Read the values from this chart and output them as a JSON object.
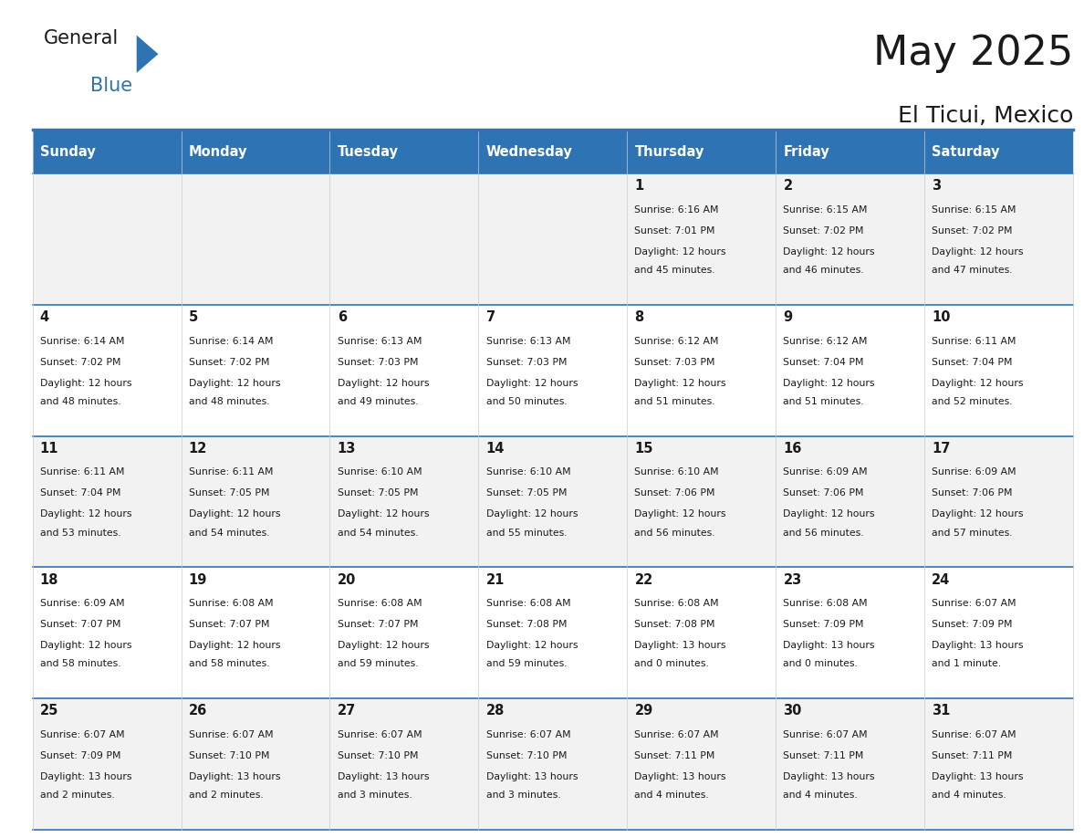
{
  "title": "May 2025",
  "subtitle": "El Ticui, Mexico",
  "days_of_week": [
    "Sunday",
    "Monday",
    "Tuesday",
    "Wednesday",
    "Thursday",
    "Friday",
    "Saturday"
  ],
  "header_bg": "#2E74B5",
  "header_text": "#FFFFFF",
  "cell_bg_light": "#F2F2F2",
  "cell_bg_white": "#FFFFFF",
  "grid_color": "#2E74B5",
  "text_color": "#1a1a1a",
  "calendar_data": [
    [
      {
        "day": "",
        "sunrise": "",
        "sunset": "",
        "daylight": ""
      },
      {
        "day": "",
        "sunrise": "",
        "sunset": "",
        "daylight": ""
      },
      {
        "day": "",
        "sunrise": "",
        "sunset": "",
        "daylight": ""
      },
      {
        "day": "",
        "sunrise": "",
        "sunset": "",
        "daylight": ""
      },
      {
        "day": "1",
        "sunrise": "6:16 AM",
        "sunset": "7:01 PM",
        "daylight": "12 hours and 45 minutes."
      },
      {
        "day": "2",
        "sunrise": "6:15 AM",
        "sunset": "7:02 PM",
        "daylight": "12 hours and 46 minutes."
      },
      {
        "day": "3",
        "sunrise": "6:15 AM",
        "sunset": "7:02 PM",
        "daylight": "12 hours and 47 minutes."
      }
    ],
    [
      {
        "day": "4",
        "sunrise": "6:14 AM",
        "sunset": "7:02 PM",
        "daylight": "12 hours and 48 minutes."
      },
      {
        "day": "5",
        "sunrise": "6:14 AM",
        "sunset": "7:02 PM",
        "daylight": "12 hours and 48 minutes."
      },
      {
        "day": "6",
        "sunrise": "6:13 AM",
        "sunset": "7:03 PM",
        "daylight": "12 hours and 49 minutes."
      },
      {
        "day": "7",
        "sunrise": "6:13 AM",
        "sunset": "7:03 PM",
        "daylight": "12 hours and 50 minutes."
      },
      {
        "day": "8",
        "sunrise": "6:12 AM",
        "sunset": "7:03 PM",
        "daylight": "12 hours and 51 minutes."
      },
      {
        "day": "9",
        "sunrise": "6:12 AM",
        "sunset": "7:04 PM",
        "daylight": "12 hours and 51 minutes."
      },
      {
        "day": "10",
        "sunrise": "6:11 AM",
        "sunset": "7:04 PM",
        "daylight": "12 hours and 52 minutes."
      }
    ],
    [
      {
        "day": "11",
        "sunrise": "6:11 AM",
        "sunset": "7:04 PM",
        "daylight": "12 hours and 53 minutes."
      },
      {
        "day": "12",
        "sunrise": "6:11 AM",
        "sunset": "7:05 PM",
        "daylight": "12 hours and 54 minutes."
      },
      {
        "day": "13",
        "sunrise": "6:10 AM",
        "sunset": "7:05 PM",
        "daylight": "12 hours and 54 minutes."
      },
      {
        "day": "14",
        "sunrise": "6:10 AM",
        "sunset": "7:05 PM",
        "daylight": "12 hours and 55 minutes."
      },
      {
        "day": "15",
        "sunrise": "6:10 AM",
        "sunset": "7:06 PM",
        "daylight": "12 hours and 56 minutes."
      },
      {
        "day": "16",
        "sunrise": "6:09 AM",
        "sunset": "7:06 PM",
        "daylight": "12 hours and 56 minutes."
      },
      {
        "day": "17",
        "sunrise": "6:09 AM",
        "sunset": "7:06 PM",
        "daylight": "12 hours and 57 minutes."
      }
    ],
    [
      {
        "day": "18",
        "sunrise": "6:09 AM",
        "sunset": "7:07 PM",
        "daylight": "12 hours and 58 minutes."
      },
      {
        "day": "19",
        "sunrise": "6:08 AM",
        "sunset": "7:07 PM",
        "daylight": "12 hours and 58 minutes."
      },
      {
        "day": "20",
        "sunrise": "6:08 AM",
        "sunset": "7:07 PM",
        "daylight": "12 hours and 59 minutes."
      },
      {
        "day": "21",
        "sunrise": "6:08 AM",
        "sunset": "7:08 PM",
        "daylight": "12 hours and 59 minutes."
      },
      {
        "day": "22",
        "sunrise": "6:08 AM",
        "sunset": "7:08 PM",
        "daylight": "13 hours and 0 minutes."
      },
      {
        "day": "23",
        "sunrise": "6:08 AM",
        "sunset": "7:09 PM",
        "daylight": "13 hours and 0 minutes."
      },
      {
        "day": "24",
        "sunrise": "6:07 AM",
        "sunset": "7:09 PM",
        "daylight": "13 hours and 1 minute."
      }
    ],
    [
      {
        "day": "25",
        "sunrise": "6:07 AM",
        "sunset": "7:09 PM",
        "daylight": "13 hours and 2 minutes."
      },
      {
        "day": "26",
        "sunrise": "6:07 AM",
        "sunset": "7:10 PM",
        "daylight": "13 hours and 2 minutes."
      },
      {
        "day": "27",
        "sunrise": "6:07 AM",
        "sunset": "7:10 PM",
        "daylight": "13 hours and 3 minutes."
      },
      {
        "day": "28",
        "sunrise": "6:07 AM",
        "sunset": "7:10 PM",
        "daylight": "13 hours and 3 minutes."
      },
      {
        "day": "29",
        "sunrise": "6:07 AM",
        "sunset": "7:11 PM",
        "daylight": "13 hours and 4 minutes."
      },
      {
        "day": "30",
        "sunrise": "6:07 AM",
        "sunset": "7:11 PM",
        "daylight": "13 hours and 4 minutes."
      },
      {
        "day": "31",
        "sunrise": "6:07 AM",
        "sunset": "7:11 PM",
        "daylight": "13 hours and 4 minutes."
      }
    ]
  ]
}
